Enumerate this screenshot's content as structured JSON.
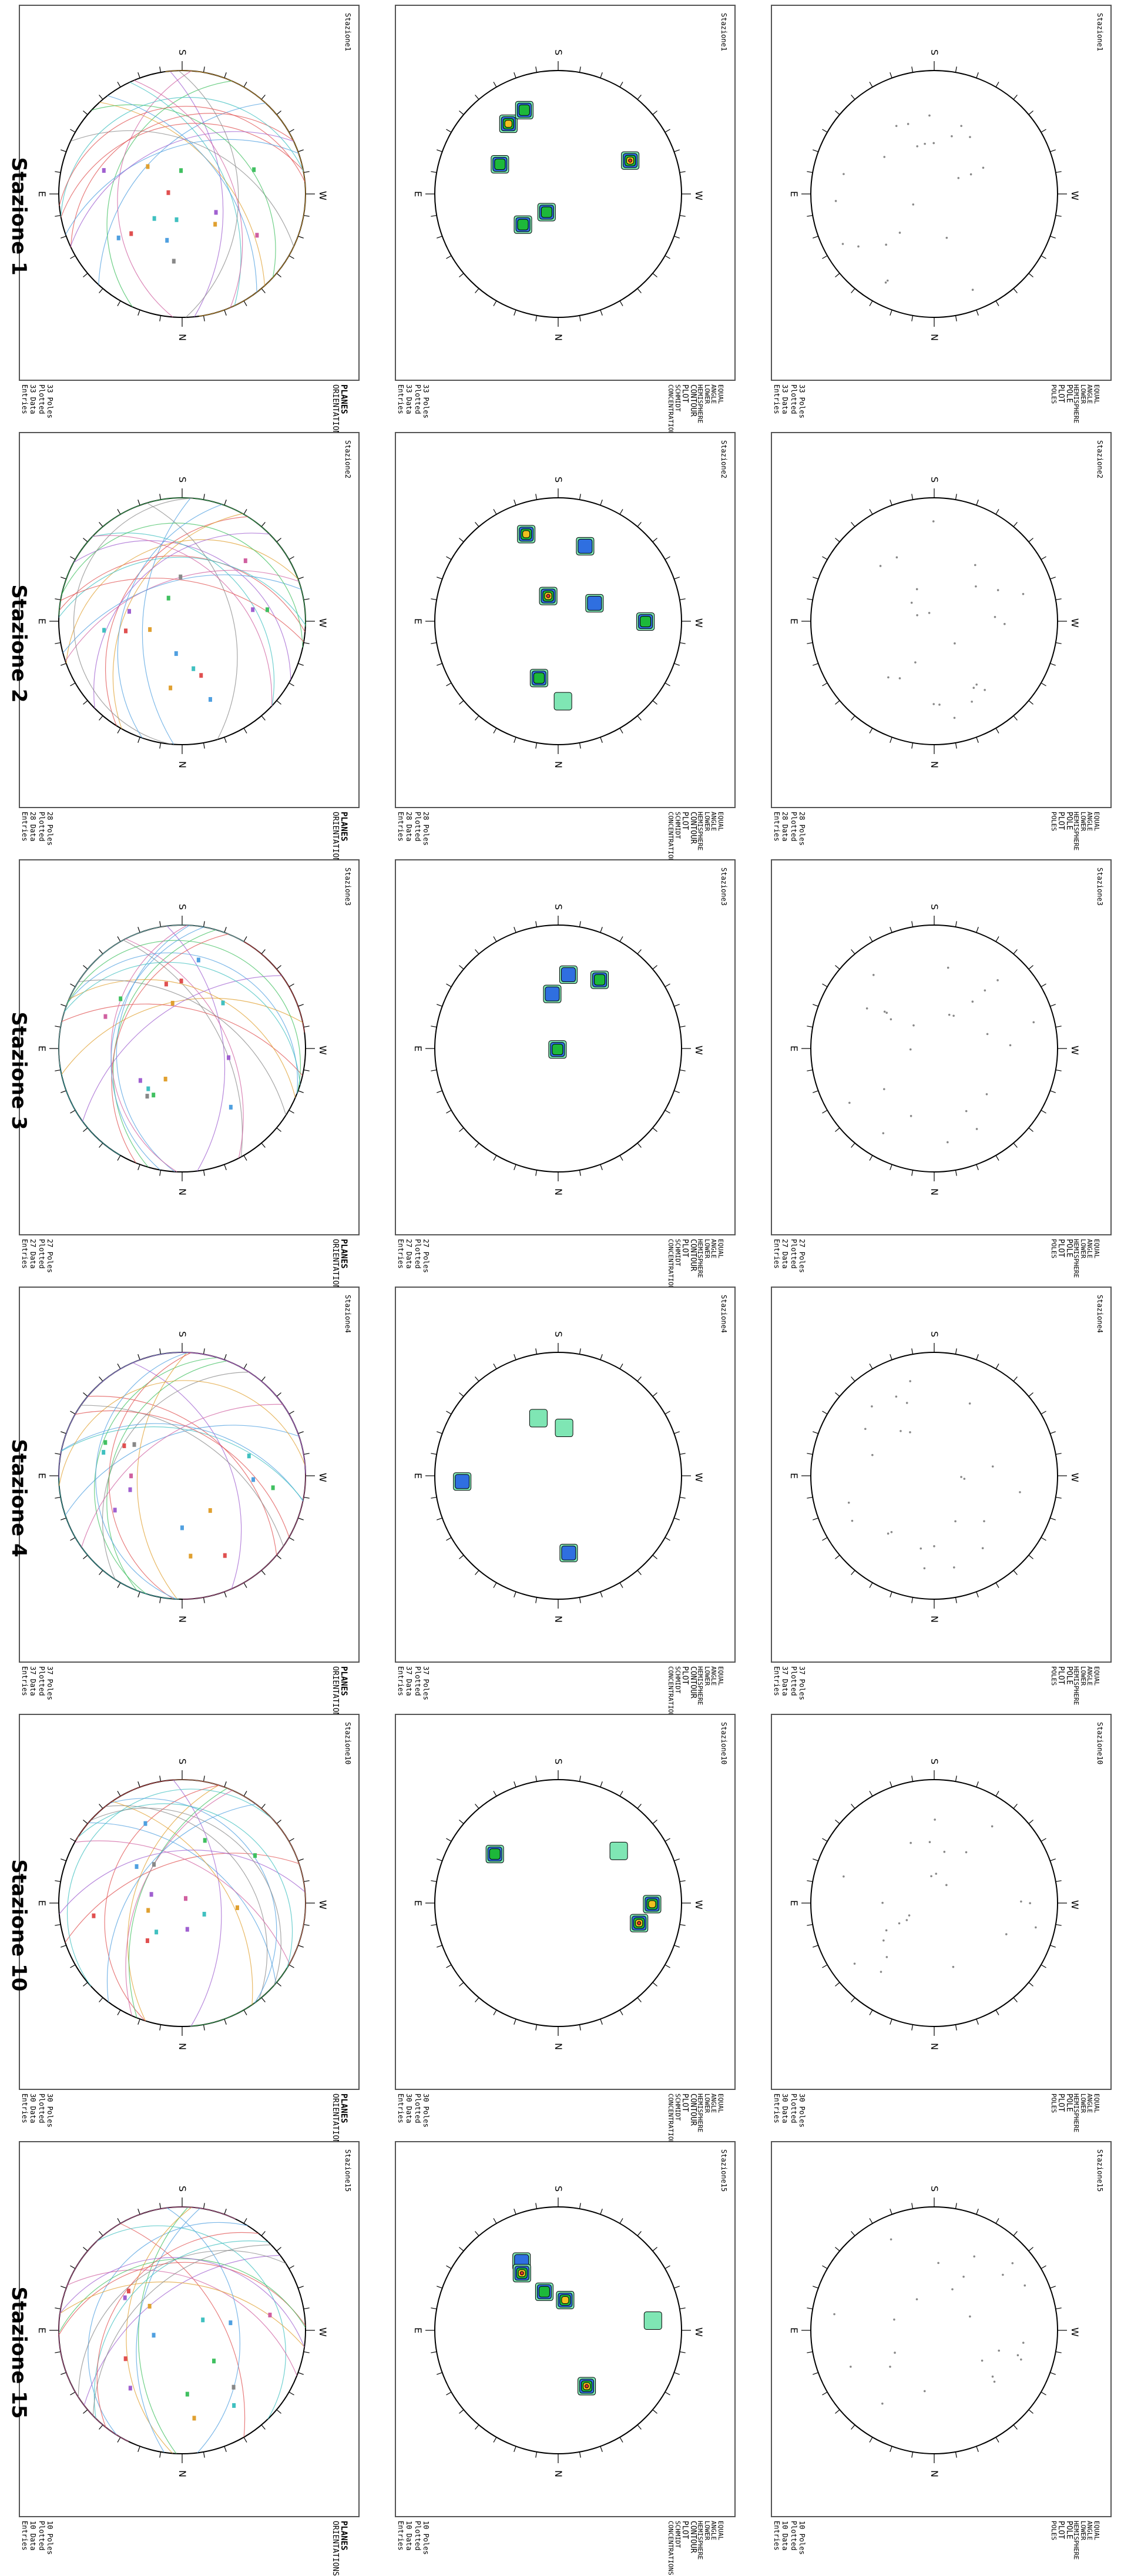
{
  "titles": [
    "Stazione 1",
    "Stazione 2",
    "Stazione 3",
    "Stazione 4",
    "Stazione 10",
    "Stazione 15"
  ],
  "station_labels": [
    "Stazione1",
    "Stazione2",
    "Stazione3",
    "Stazione4",
    "Stazione10",
    "Stazione15"
  ],
  "compass": {
    "n": "N",
    "s": "S",
    "e": "E",
    "w": "W"
  },
  "pole_plot": {
    "line1": "EQUAL ANGLE",
    "line2": "LOWER HEMISPHERE",
    "title": "POLE   PLOT",
    "legend": "POLES"
  },
  "contour_plot": {
    "line1": "EQUAL ANGLE",
    "line2": "LOWER HEMISPHERE",
    "title": "CONTOUR PLOT",
    "sub1": "SCHMIDT",
    "sub2": "CONCENTRATIONS"
  },
  "planes_plot": {
    "title": "PLANES",
    "sub": "ORIENTATIONS"
  },
  "footers": [
    {
      "poles": "33  Poles Plotted",
      "entries": "33  Data  Entries"
    },
    {
      "poles": "28  Poles Plotted",
      "entries": "28  Data  Entries"
    },
    {
      "poles": "27  Poles Plotted",
      "entries": "27  Data  Entries"
    },
    {
      "poles": "37  Poles Plotted",
      "entries": "37  Data  Entries"
    },
    {
      "poles": "30  Poles Plotted",
      "entries": "30  Data  Entries"
    },
    {
      "poles": "10  Poles Plotted",
      "entries": "10  Data  Entries"
    }
  ],
  "colors": {
    "contour_low": "#7fe6b4",
    "contour_mid": "#2f6fe0",
    "contour_hi1": "#1db83a",
    "contour_hi2": "#f0c020",
    "contour_peak": "#e03030",
    "pole": "#888888"
  }
}
